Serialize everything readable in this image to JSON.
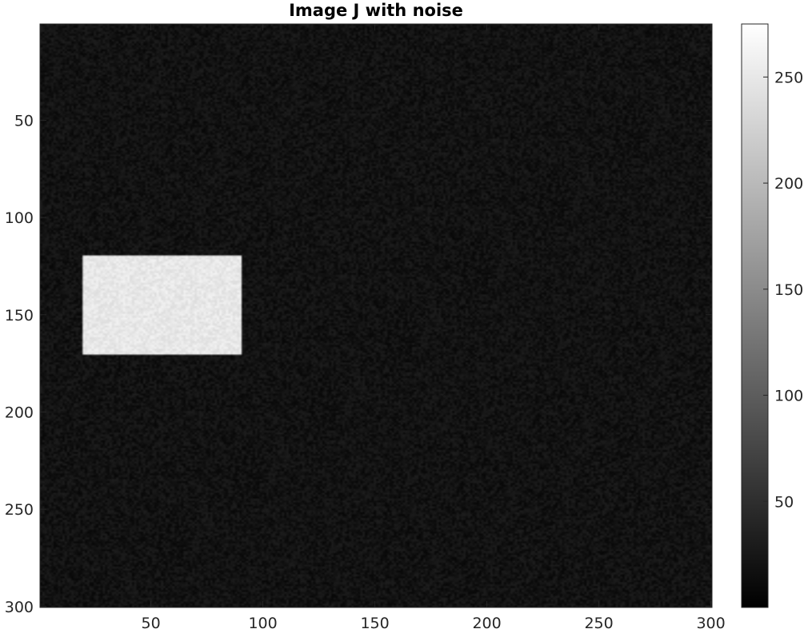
{
  "chart_data": {
    "type": "heatmap",
    "title": "Image J with noise",
    "xlabel": "",
    "ylabel": "",
    "image_size": [
      300,
      300
    ],
    "x_range": [
      0.5,
      300.5
    ],
    "y_range": [
      0.5,
      300.5
    ],
    "y_direction": "reversed",
    "x_ticks": [
      50,
      100,
      150,
      200,
      250,
      300
    ],
    "y_ticks": [
      50,
      100,
      150,
      200,
      250,
      300
    ],
    "background_level": 20,
    "noise_amplitude": 12,
    "bright_rectangle": {
      "x_start": 20,
      "x_end": 90,
      "y_start": 120,
      "y_end": 170,
      "level": 250
    },
    "colormap": "gray",
    "colorbar": {
      "range": [
        0,
        275
      ],
      "ticks": [
        50,
        100,
        150,
        200,
        250
      ],
      "location": "right"
    }
  }
}
